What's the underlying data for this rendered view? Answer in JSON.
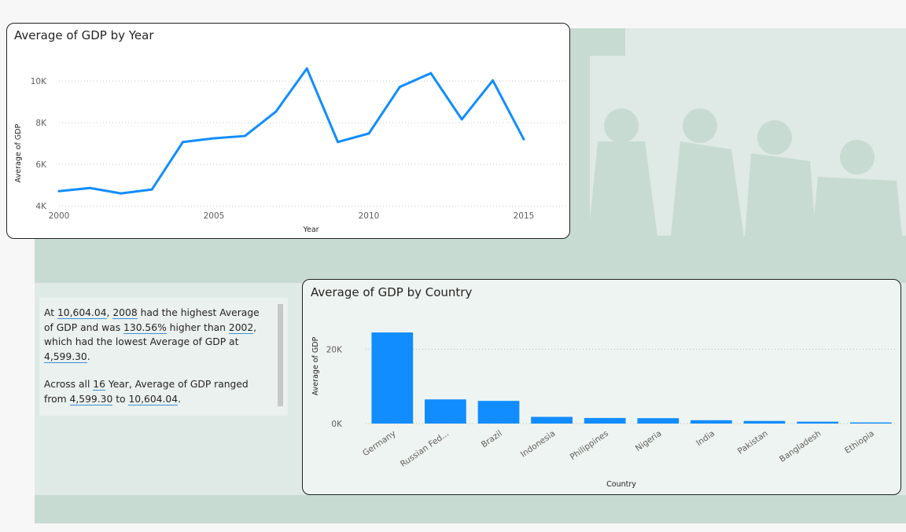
{
  "line_card": {
    "title": "Average of GDP by Year"
  },
  "bar_card": {
    "title": "Average of GDP by Country"
  },
  "narrative": {
    "p1": [
      {
        "t": "At ",
        "hl": false
      },
      {
        "t": "10,604.04",
        "hl": true
      },
      {
        "t": ", ",
        "hl": false
      },
      {
        "t": "2008",
        "hl": true
      },
      {
        "t": " had the highest Average of GDP and was ",
        "hl": false
      },
      {
        "t": "130.56%",
        "hl": true
      },
      {
        "t": " higher than ",
        "hl": false
      },
      {
        "t": "2002",
        "hl": true
      },
      {
        "t": ", which had the lowest Average of GDP at ",
        "hl": false
      },
      {
        "t": "4,599.30",
        "hl": true
      },
      {
        "t": ".",
        "hl": false
      }
    ],
    "p2": [
      {
        "t": "Across all ",
        "hl": false
      },
      {
        "t": "16",
        "hl": true
      },
      {
        "t": " Year, Average of GDP ranged from ",
        "hl": false
      },
      {
        "t": "4,599.30",
        "hl": true
      },
      {
        "t": " to ",
        "hl": false
      },
      {
        "t": "10,604.04",
        "hl": true
      },
      {
        "t": ".",
        "hl": false
      }
    ]
  },
  "colors": {
    "series": "#118DFF",
    "accent": "#3a8fd8"
  },
  "chart_data": [
    {
      "type": "line",
      "title": "Average of GDP by Year",
      "xlabel": "Year",
      "ylabel": "Average of GDP",
      "x": [
        2000,
        2001,
        2002,
        2003,
        2004,
        2005,
        2006,
        2007,
        2008,
        2009,
        2010,
        2011,
        2012,
        2013,
        2014,
        2015
      ],
      "values": [
        4710,
        4860,
        4599.3,
        4790,
        7070,
        7250,
        7360,
        8530,
        10604.04,
        7070,
        7480,
        9720,
        10380,
        8160,
        10030,
        7200
      ],
      "xticks": [
        2000,
        2005,
        2010,
        2015
      ],
      "xtick_labels": [
        "2000",
        "2005",
        "2010",
        "2015"
      ],
      "yticks": [
        4000,
        6000,
        8000,
        10000
      ],
      "ytick_labels": [
        "4K",
        "6K",
        "8K",
        "10K"
      ],
      "xlim": [
        2000,
        2015
      ],
      "ylim": [
        4000,
        10800
      ],
      "grid": true
    },
    {
      "type": "bar",
      "title": "Average of GDP by Country",
      "xlabel": "Country",
      "ylabel": "Average of GDP",
      "categories": [
        "Germany",
        "Russian Fed...",
        "Brazil",
        "Indonesia",
        "Philippines",
        "Nigeria",
        "India",
        "Pakistan",
        "Bangladesh",
        "Ethiopia"
      ],
      "values": [
        24500,
        6500,
        6100,
        1800,
        1500,
        1450,
        900,
        700,
        500,
        300
      ],
      "yticks": [
        0,
        20000
      ],
      "ytick_labels": [
        "0K",
        "20K"
      ],
      "ylim": [
        0,
        26000
      ],
      "grid": true
    }
  ]
}
